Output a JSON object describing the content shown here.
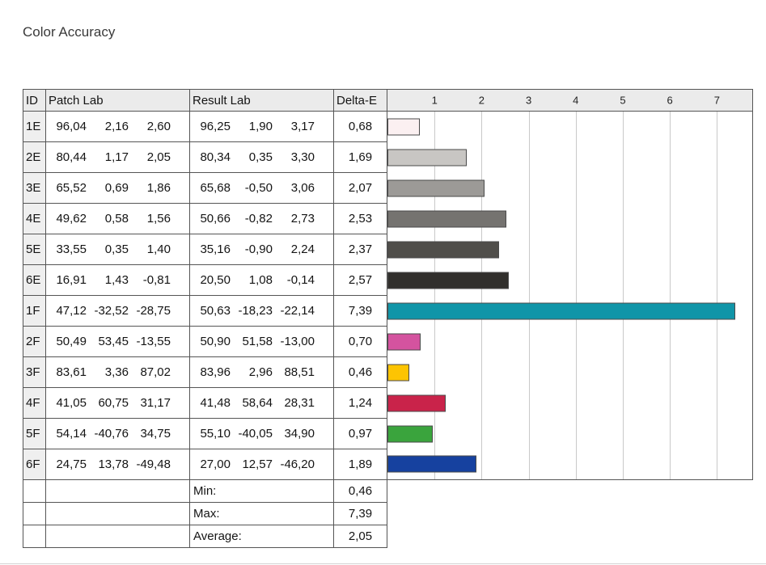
{
  "page": {
    "title": "Color Accuracy"
  },
  "table": {
    "headers": {
      "id": "ID",
      "patch": "Patch Lab",
      "result": "Result Lab",
      "delta": "Delta-E"
    },
    "rows": [
      {
        "id": "1E",
        "patch": [
          "96,04",
          "2,16",
          "2,60"
        ],
        "result": [
          "96,25",
          "1,90",
          "3,17"
        ],
        "delta": "0,68",
        "value": 0.68,
        "color": "#fbf0f1"
      },
      {
        "id": "2E",
        "patch": [
          "80,44",
          "1,17",
          "2,05"
        ],
        "result": [
          "80,34",
          "0,35",
          "3,30"
        ],
        "delta": "1,69",
        "value": 1.69,
        "color": "#c8c6c3"
      },
      {
        "id": "3E",
        "patch": [
          "65,52",
          "0,69",
          "1,86"
        ],
        "result": [
          "65,68",
          "-0,50",
          "3,06"
        ],
        "delta": "2,07",
        "value": 2.07,
        "color": "#9c9a97"
      },
      {
        "id": "4E",
        "patch": [
          "49,62",
          "0,58",
          "1,56"
        ],
        "result": [
          "50,66",
          "-0,82",
          "2,73"
        ],
        "delta": "2,53",
        "value": 2.53,
        "color": "#757370"
      },
      {
        "id": "5E",
        "patch": [
          "33,55",
          "0,35",
          "1,40"
        ],
        "result": [
          "35,16",
          "-0,90",
          "2,24"
        ],
        "delta": "2,37",
        "value": 2.37,
        "color": "#504e4a"
      },
      {
        "id": "6E",
        "patch": [
          "16,91",
          "1,43",
          "-0,81"
        ],
        "result": [
          "20,50",
          "1,08",
          "-0,14"
        ],
        "delta": "2,57",
        "value": 2.57,
        "color": "#312f2c"
      },
      {
        "id": "1F",
        "patch": [
          "47,12",
          "-32,52",
          "-28,75"
        ],
        "result": [
          "50,63",
          "-18,23",
          "-22,14"
        ],
        "delta": "7,39",
        "value": 7.39,
        "color": "#1095a8"
      },
      {
        "id": "2F",
        "patch": [
          "50,49",
          "53,45",
          "-13,55"
        ],
        "result": [
          "50,90",
          "51,58",
          "-13,00"
        ],
        "delta": "0,70",
        "value": 0.7,
        "color": "#d4539f"
      },
      {
        "id": "3F",
        "patch": [
          "83,61",
          "3,36",
          "87,02"
        ],
        "result": [
          "83,96",
          "2,96",
          "88,51"
        ],
        "delta": "0,46",
        "value": 0.46,
        "color": "#fdc402"
      },
      {
        "id": "4F",
        "patch": [
          "41,05",
          "60,75",
          "31,17"
        ],
        "result": [
          "41,48",
          "58,64",
          "28,31"
        ],
        "delta": "1,24",
        "value": 1.24,
        "color": "#c9234a"
      },
      {
        "id": "5F",
        "patch": [
          "54,14",
          "-40,76",
          "34,75"
        ],
        "result": [
          "55,10",
          "-40,05",
          "34,90"
        ],
        "delta": "0,97",
        "value": 0.97,
        "color": "#3aa43d"
      },
      {
        "id": "6F",
        "patch": [
          "24,75",
          "13,78",
          "-49,48"
        ],
        "result": [
          "27,00",
          "12,57",
          "-46,20"
        ],
        "delta": "1,89",
        "value": 1.89,
        "color": "#16419f"
      }
    ],
    "footer": [
      {
        "label": "Min:",
        "value": "0,46"
      },
      {
        "label": "Max:",
        "value": "7,39"
      },
      {
        "label": "Average:",
        "value": "2,05"
      }
    ]
  },
  "chart": {
    "axis_ticks": [
      "1",
      "2",
      "3",
      "4",
      "5",
      "6",
      "7"
    ],
    "axis_max": 7.75
  },
  "chart_data": {
    "type": "bar",
    "title": "Color Accuracy",
    "categories": [
      "1E",
      "2E",
      "3E",
      "4E",
      "5E",
      "6E",
      "1F",
      "2F",
      "3F",
      "4F",
      "5F",
      "6F"
    ],
    "values": [
      0.68,
      1.69,
      2.07,
      2.53,
      2.37,
      2.57,
      7.39,
      0.7,
      0.46,
      1.24,
      0.97,
      1.89
    ],
    "xlabel": "Delta-E",
    "ylabel": "",
    "xlim": [
      0,
      7.75
    ],
    "grid": true,
    "legend": "none",
    "orientation": "horizontal",
    "bar_colors": [
      "#fbf0f1",
      "#c8c6c3",
      "#9c9a97",
      "#757370",
      "#504e4a",
      "#312f2c",
      "#1095a8",
      "#d4539f",
      "#fdc402",
      "#c9234a",
      "#3aa43d",
      "#16419f"
    ],
    "stats": {
      "min": 0.46,
      "max": 7.39,
      "average": 2.05
    }
  }
}
